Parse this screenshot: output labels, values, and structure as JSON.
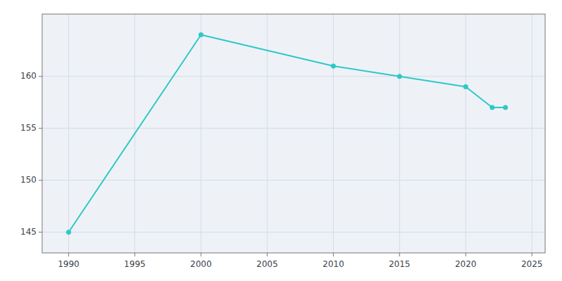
{
  "chart_data": {
    "type": "line",
    "x": [
      1990,
      2000,
      2010,
      2015,
      2020,
      2022,
      2023
    ],
    "values": [
      145,
      164,
      161,
      160,
      159,
      157,
      157
    ],
    "color": "#2ec8c8",
    "marker": "circle",
    "xlim": [
      1988,
      2026
    ],
    "ylim": [
      143,
      166
    ],
    "xticks": [
      1990,
      1995,
      2000,
      2005,
      2010,
      2015,
      2020,
      2025
    ],
    "yticks": [
      145,
      150,
      155,
      160
    ],
    "grid": true
  }
}
